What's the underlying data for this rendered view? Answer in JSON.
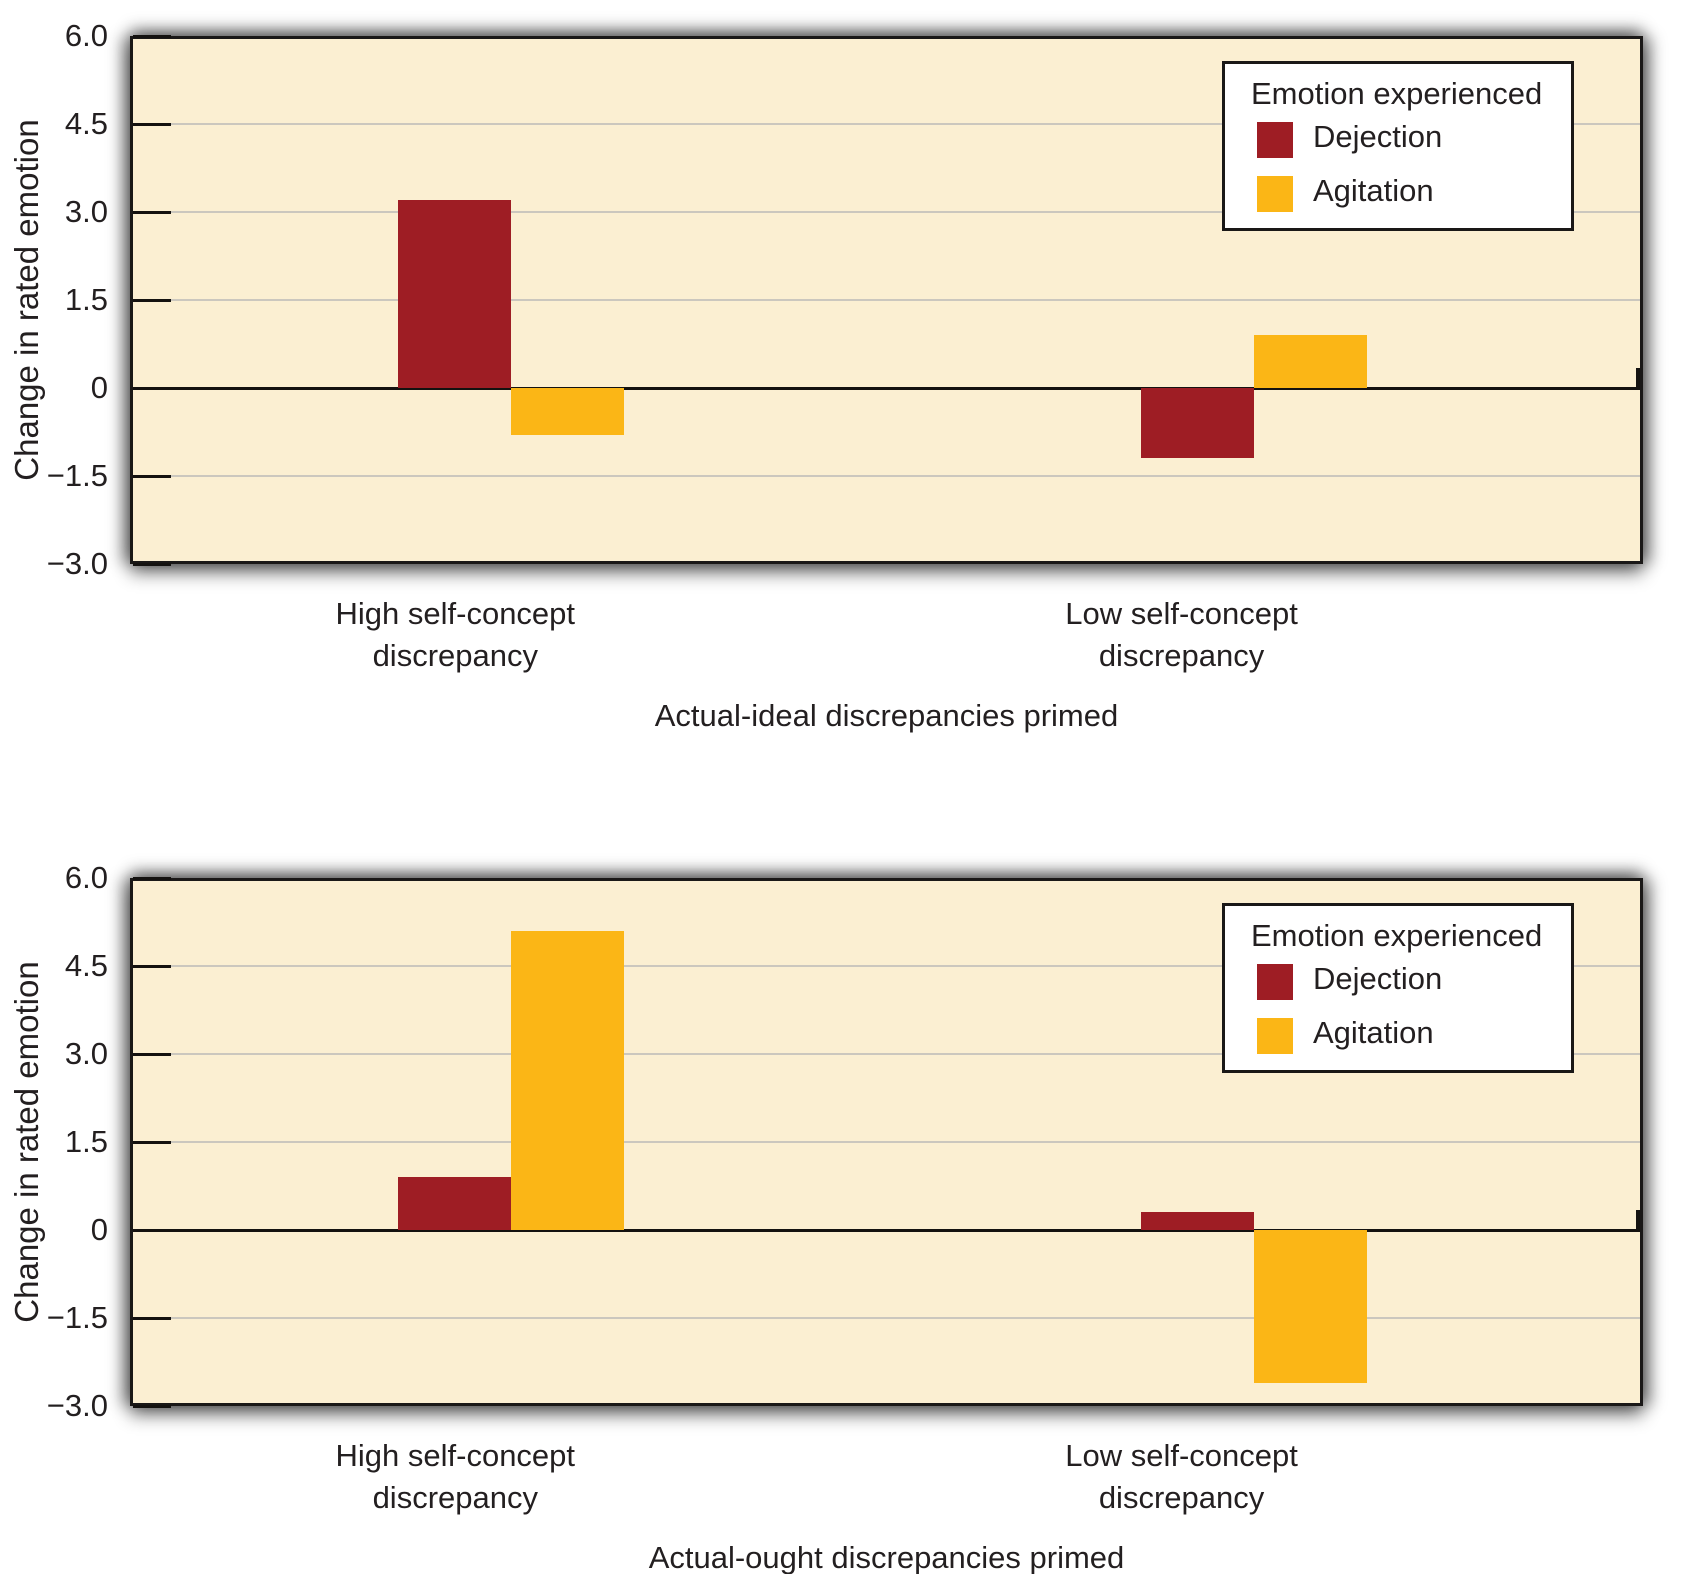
{
  "colors": {
    "page_bg": "#FFFFFF",
    "plot_bg": "#FBEFD2",
    "grid": "#CBC7BE",
    "axis": "#141210",
    "text": "#231F20",
    "legend_bg": "#FFFFFF",
    "dejection": "#9E1D24",
    "agitation": "#FBB616"
  },
  "chart_data": [
    {
      "type": "bar",
      "title": "Actual-ideal discrepancies primed",
      "ylabel": "Change in rated emotion",
      "ylim": [
        -3.0,
        6.0
      ],
      "yticks": [
        6.0,
        4.5,
        3.0,
        1.5,
        0,
        -1.5,
        -3.0
      ],
      "ytick_labels": [
        "6.0",
        "4.5",
        "3.0",
        "1.5",
        "0",
        "−1.5",
        "−3.0"
      ],
      "grid": true,
      "legend_position": "top-right",
      "categories": [
        "High self-concept discrepancy",
        "Low self-concept discrepancy"
      ],
      "category_lines": [
        [
          "High self-concept",
          "discrepancy"
        ],
        [
          "Low self-concept",
          "discrepancy"
        ]
      ],
      "legend": {
        "title": "Emotion experienced",
        "entries": [
          {
            "label": "Dejection",
            "color": "#9E1D24"
          },
          {
            "label": "Agitation",
            "color": "#FBB616"
          }
        ]
      },
      "series": [
        {
          "name": "Dejection",
          "color": "#9E1D24",
          "values": [
            3.2,
            -1.2
          ]
        },
        {
          "name": "Agitation",
          "color": "#FBB616",
          "values": [
            -0.8,
            0.9
          ]
        }
      ]
    },
    {
      "type": "bar",
      "title": "Actual-ought discrepancies primed",
      "ylabel": "Change in rated emotion",
      "ylim": [
        -3.0,
        6.0
      ],
      "yticks": [
        6.0,
        4.5,
        3.0,
        1.5,
        0,
        -1.5,
        -3.0
      ],
      "ytick_labels": [
        "6.0",
        "4.5",
        "3.0",
        "1.5",
        "0",
        "−1.5",
        "−3.0"
      ],
      "grid": true,
      "legend_position": "top-right",
      "categories": [
        "High self-concept discrepancy",
        "Low self-concept discrepancy"
      ],
      "category_lines": [
        [
          "High self-concept",
          "discrepancy"
        ],
        [
          "Low self-concept",
          "discrepancy"
        ]
      ],
      "legend": {
        "title": "Emotion experienced",
        "entries": [
          {
            "label": "Dejection",
            "color": "#9E1D24"
          },
          {
            "label": "Agitation",
            "color": "#FBB616"
          }
        ]
      },
      "series": [
        {
          "name": "Dejection",
          "color": "#9E1D24",
          "values": [
            0.9,
            0.3
          ]
        },
        {
          "name": "Agitation",
          "color": "#FBB616",
          "values": [
            5.1,
            -2.6
          ]
        }
      ]
    }
  ]
}
